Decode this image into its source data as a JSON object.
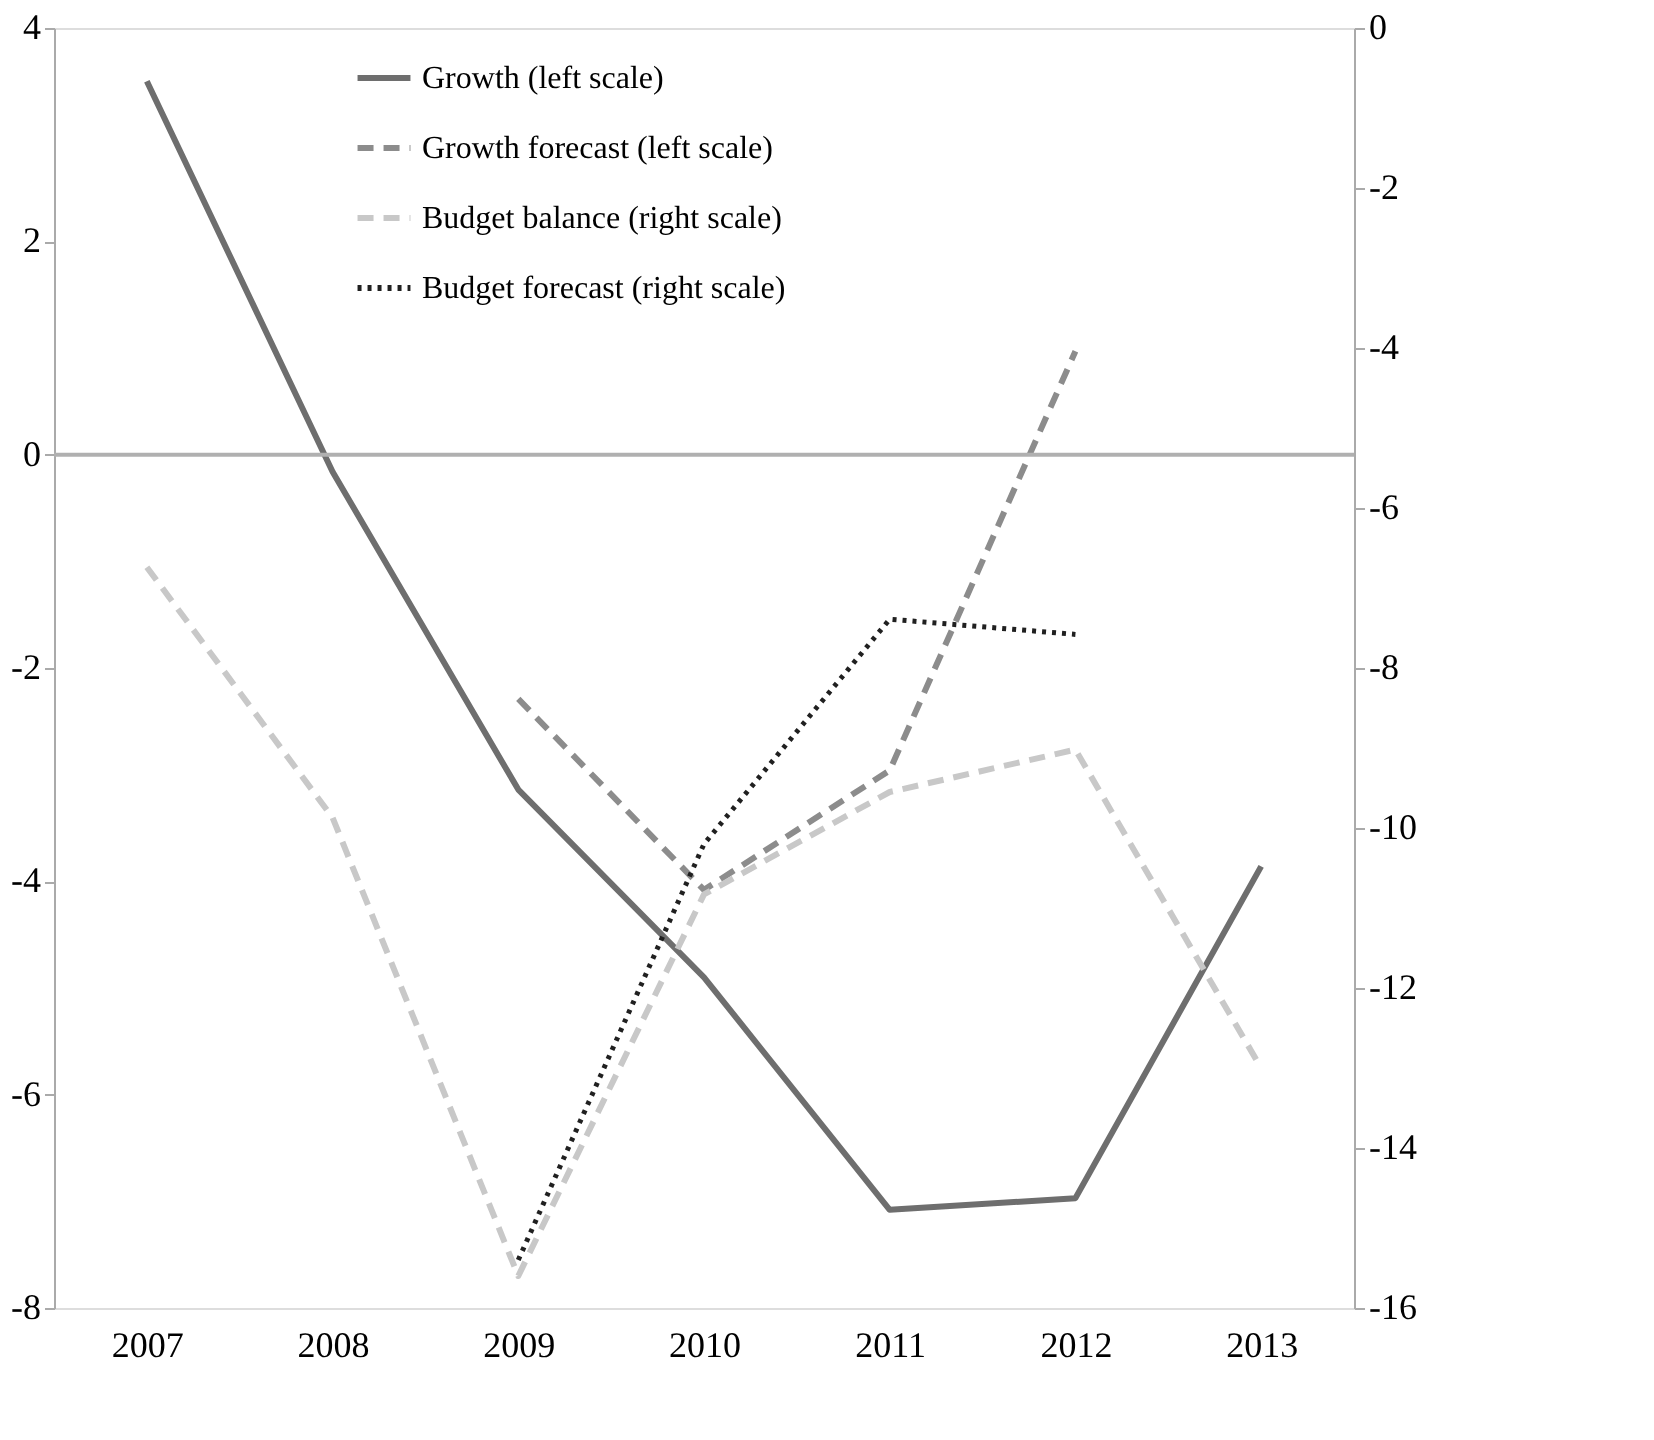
{
  "chart_data": {
    "type": "line",
    "categories": [
      "2007",
      "2008",
      "2009",
      "2010",
      "2011",
      "2012",
      "2013"
    ],
    "series": [
      {
        "name": "Growth (left scale)",
        "color": "#6e6e6e",
        "line_style": "solid",
        "values": [
          3.5,
          -0.16,
          -3.14,
          -4.9,
          -7.08,
          -6.97,
          -3.86
        ]
      },
      {
        "name": "Growth forecast (left scale)",
        "color": "#8c8c8c",
        "line_style": "dashed",
        "values": [
          null,
          null,
          -2.29,
          -4.08,
          -2.96,
          0.97,
          null
        ]
      },
      {
        "name": "Budget balance (right scale)",
        "color": "#c8c8c8",
        "line_style": "dashed",
        "axis": "y2",
        "values": [
          -6.74,
          -9.87,
          -15.6,
          -10.83,
          -9.55,
          -9.02,
          -13.0
        ]
      },
      {
        "name": "Budget forecast (right scale)",
        "color": "#202020",
        "line_style": "dotted",
        "axis": "y2",
        "values": [
          null,
          null,
          -15.4,
          -10.2,
          -7.39,
          -7.58,
          null
        ]
      }
    ],
    "ylim": [
      -8,
      4
    ],
    "yticks": [
      -8,
      -6,
      -4,
      -2,
      0,
      2,
      4
    ],
    "y2lim": [
      -16,
      0
    ],
    "y2ticks": [
      -16,
      -14,
      -12,
      -10,
      -8,
      -6,
      -4,
      -2,
      0
    ],
    "ref_lines": [
      {
        "axis": "y",
        "value": 0,
        "color": "#b0b0b0"
      }
    ],
    "grid": false,
    "legend": "top",
    "marker": "none"
  }
}
